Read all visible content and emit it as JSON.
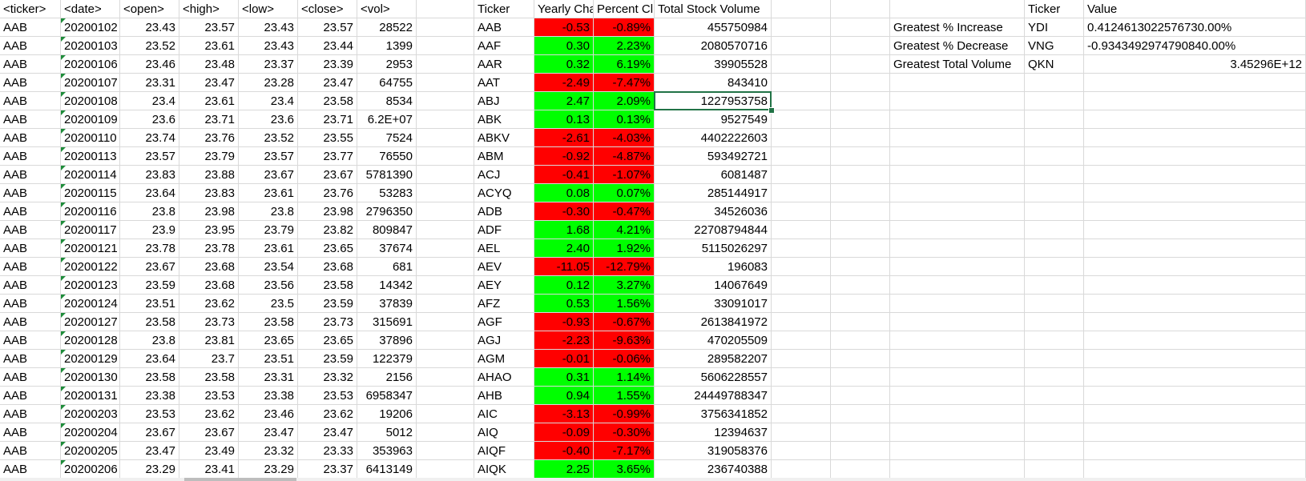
{
  "raw_headers": [
    "<ticker>",
    "<date>",
    "<open>",
    "<high>",
    "<low>",
    "<close>",
    "<vol>"
  ],
  "raw_rows": [
    [
      "AAB",
      "20200102",
      "23.43",
      "23.57",
      "23.43",
      "23.57",
      "28522"
    ],
    [
      "AAB",
      "20200103",
      "23.52",
      "23.61",
      "23.43",
      "23.44",
      "1399"
    ],
    [
      "AAB",
      "20200106",
      "23.46",
      "23.48",
      "23.37",
      "23.39",
      "2953"
    ],
    [
      "AAB",
      "20200107",
      "23.31",
      "23.47",
      "23.28",
      "23.47",
      "64755"
    ],
    [
      "AAB",
      "20200108",
      "23.4",
      "23.61",
      "23.4",
      "23.58",
      "8534"
    ],
    [
      "AAB",
      "20200109",
      "23.6",
      "23.71",
      "23.6",
      "23.71",
      "6.2E+07"
    ],
    [
      "AAB",
      "20200110",
      "23.74",
      "23.76",
      "23.52",
      "23.55",
      "7524"
    ],
    [
      "AAB",
      "20200113",
      "23.57",
      "23.79",
      "23.57",
      "23.77",
      "76550"
    ],
    [
      "AAB",
      "20200114",
      "23.83",
      "23.88",
      "23.67",
      "23.67",
      "5781390"
    ],
    [
      "AAB",
      "20200115",
      "23.64",
      "23.83",
      "23.61",
      "23.76",
      "53283"
    ],
    [
      "AAB",
      "20200116",
      "23.8",
      "23.98",
      "23.8",
      "23.98",
      "2796350"
    ],
    [
      "AAB",
      "20200117",
      "23.9",
      "23.95",
      "23.79",
      "23.82",
      "809847"
    ],
    [
      "AAB",
      "20200121",
      "23.78",
      "23.78",
      "23.61",
      "23.65",
      "37674"
    ],
    [
      "AAB",
      "20200122",
      "23.67",
      "23.68",
      "23.54",
      "23.68",
      "681"
    ],
    [
      "AAB",
      "20200123",
      "23.59",
      "23.68",
      "23.56",
      "23.58",
      "14342"
    ],
    [
      "AAB",
      "20200124",
      "23.51",
      "23.62",
      "23.5",
      "23.59",
      "37839"
    ],
    [
      "AAB",
      "20200127",
      "23.58",
      "23.73",
      "23.58",
      "23.73",
      "315691"
    ],
    [
      "AAB",
      "20200128",
      "23.8",
      "23.81",
      "23.65",
      "23.65",
      "37896"
    ],
    [
      "AAB",
      "20200129",
      "23.64",
      "23.7",
      "23.51",
      "23.59",
      "122379"
    ],
    [
      "AAB",
      "20200130",
      "23.58",
      "23.58",
      "23.31",
      "23.32",
      "2156"
    ],
    [
      "AAB",
      "20200131",
      "23.38",
      "23.53",
      "23.38",
      "23.53",
      "6958347"
    ],
    [
      "AAB",
      "20200203",
      "23.53",
      "23.62",
      "23.46",
      "23.62",
      "19206"
    ],
    [
      "AAB",
      "20200204",
      "23.67",
      "23.67",
      "23.47",
      "23.47",
      "5012"
    ],
    [
      "AAB",
      "20200205",
      "23.47",
      "23.49",
      "23.32",
      "23.33",
      "353963"
    ],
    [
      "AAB",
      "20200206",
      "23.29",
      "23.41",
      "23.29",
      "23.37",
      "6413149"
    ]
  ],
  "summary_headers": [
    "Ticker",
    "Yearly Cha",
    "Percent Cl",
    "Total Stock Volume"
  ],
  "summary_rows": [
    {
      "ticker": "AAB",
      "change": "-0.53",
      "percent": "-0.89%",
      "volume": "455750984",
      "status": "negative"
    },
    {
      "ticker": "AAF",
      "change": "0.30",
      "percent": "2.23%",
      "volume": "2080570716",
      "status": "positive"
    },
    {
      "ticker": "AAR",
      "change": "0.32",
      "percent": "6.19%",
      "volume": "39905528",
      "status": "positive"
    },
    {
      "ticker": "AAT",
      "change": "-2.49",
      "percent": "-7.47%",
      "volume": "843410",
      "status": "negative"
    },
    {
      "ticker": "ABJ",
      "change": "2.47",
      "percent": "2.09%",
      "volume": "1227953758",
      "status": "positive"
    },
    {
      "ticker": "ABK",
      "change": "0.13",
      "percent": "0.13%",
      "volume": "9527549",
      "status": "positive"
    },
    {
      "ticker": "ABKV",
      "change": "-2.61",
      "percent": "-4.03%",
      "volume": "4402222603",
      "status": "negative"
    },
    {
      "ticker": "ABM",
      "change": "-0.92",
      "percent": "-4.87%",
      "volume": "593492721",
      "status": "negative"
    },
    {
      "ticker": "ACJ",
      "change": "-0.41",
      "percent": "-1.07%",
      "volume": "6081487",
      "status": "negative"
    },
    {
      "ticker": "ACYQ",
      "change": "0.08",
      "percent": "0.07%",
      "volume": "285144917",
      "status": "positive"
    },
    {
      "ticker": "ADB",
      "change": "-0.30",
      "percent": "-0.47%",
      "volume": "34526036",
      "status": "negative"
    },
    {
      "ticker": "ADF",
      "change": "1.68",
      "percent": "4.21%",
      "volume": "22708794844",
      "status": "positive"
    },
    {
      "ticker": "AEL",
      "change": "2.40",
      "percent": "1.92%",
      "volume": "5115026297",
      "status": "positive"
    },
    {
      "ticker": "AEV",
      "change": "-11.05",
      "percent": "-12.79%",
      "volume": "196083",
      "status": "negative"
    },
    {
      "ticker": "AEY",
      "change": "0.12",
      "percent": "3.27%",
      "volume": "14067649",
      "status": "positive"
    },
    {
      "ticker": "AFZ",
      "change": "0.53",
      "percent": "1.56%",
      "volume": "33091017",
      "status": "positive"
    },
    {
      "ticker": "AGF",
      "change": "-0.93",
      "percent": "-0.67%",
      "volume": "2613841972",
      "status": "negative"
    },
    {
      "ticker": "AGJ",
      "change": "-2.23",
      "percent": "-9.63%",
      "volume": "470205509",
      "status": "negative"
    },
    {
      "ticker": "AGM",
      "change": "-0.01",
      "percent": "-0.06%",
      "volume": "289582207",
      "status": "negative"
    },
    {
      "ticker": "AHAO",
      "change": "0.31",
      "percent": "1.14%",
      "volume": "5606228557",
      "status": "positive"
    },
    {
      "ticker": "AHB",
      "change": "0.94",
      "percent": "1.55%",
      "volume": "24449788347",
      "status": "positive"
    },
    {
      "ticker": "AIC",
      "change": "-3.13",
      "percent": "-0.99%",
      "volume": "3756341852",
      "status": "negative"
    },
    {
      "ticker": "AIQ",
      "change": "-0.09",
      "percent": "-0.30%",
      "volume": "12394637",
      "status": "negative"
    },
    {
      "ticker": "AIQF",
      "change": "-0.40",
      "percent": "-7.17%",
      "volume": "319058376",
      "status": "negative"
    },
    {
      "ticker": "AIQK",
      "change": "2.25",
      "percent": "3.65%",
      "volume": "236740388",
      "status": "positive"
    }
  ],
  "greatest_headers": [
    "Ticker",
    "Value"
  ],
  "greatest_rows": [
    {
      "label": "Greatest % Increase",
      "ticker": "YDI",
      "value": "0.4124613022576730.00%"
    },
    {
      "label": "Greatest % Decrease",
      "ticker": "VNG",
      "value": "-0.9343492974790840.00%"
    },
    {
      "label": "Greatest Total Volume",
      "ticker": "QKN",
      "value": "3.45296E+12"
    }
  ],
  "selected_summary_row": 4,
  "colors": {
    "negative": "#ff0000",
    "positive": "#00ff00",
    "selection": "#217346",
    "gridline": "#d9d9d9"
  }
}
